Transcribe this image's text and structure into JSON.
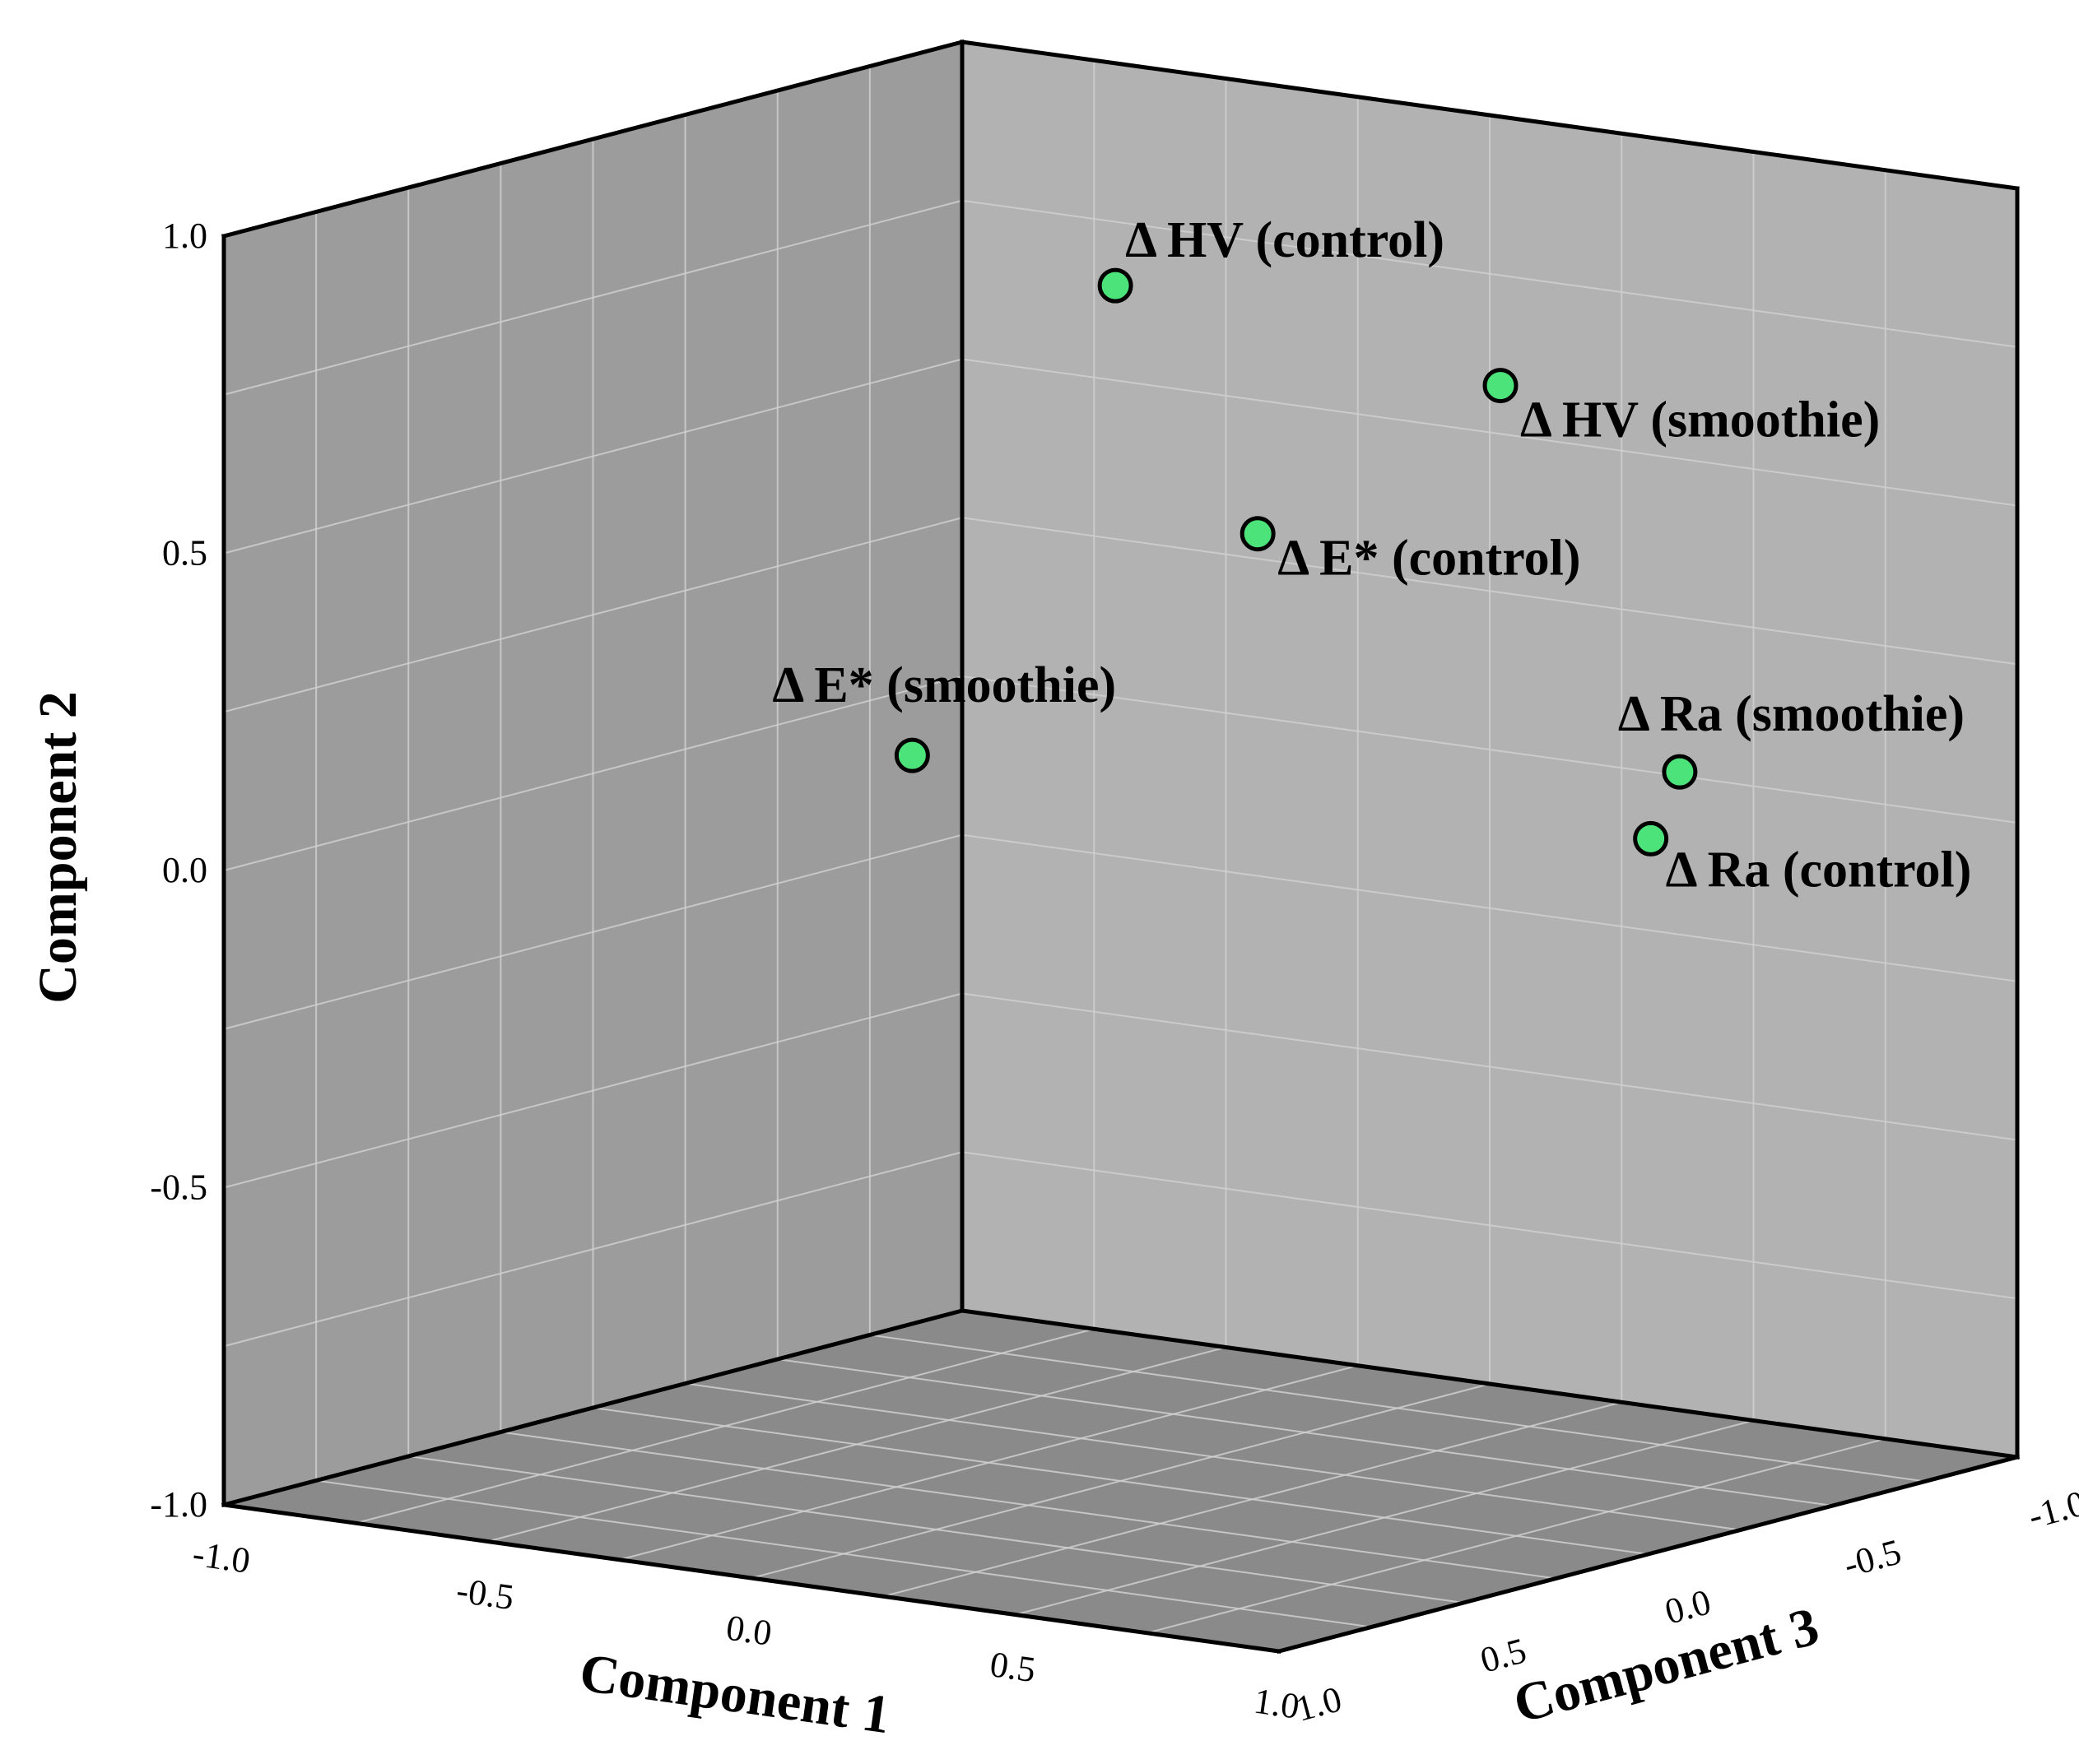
{
  "chart_data": {
    "type": "scatter",
    "subtype": "3d-scatter",
    "title": "",
    "axes": {
      "x": {
        "label": "Component 1",
        "range": [
          -1.0,
          1.0
        ],
        "ticks": [
          "-1.0",
          "-0.5",
          "0.0",
          "0.5",
          "1.0"
        ]
      },
      "y": {
        "label": "Component 2",
        "range": [
          -1.0,
          1.0
        ],
        "ticks": [
          "-1.0",
          "-0.5",
          "0.0",
          "0.5",
          "1.0"
        ]
      },
      "z": {
        "label": "Component 3",
        "range": [
          -1.0,
          1.0
        ],
        "ticks": [
          "1.0",
          "0.5",
          "0.0",
          "-0.5",
          "-1.0"
        ]
      }
    },
    "grid": true,
    "legend": "none",
    "colors": {
      "point_fill": "#4be37a",
      "point_stroke": "#000000",
      "back_wall": "#b2b2b2",
      "side_wall": "#9c9c9c",
      "floor": "#8a8a8a",
      "grid_line": "#cfcfcf",
      "frame": "#000000"
    },
    "points": [
      {
        "label": "Δ HV (control)",
        "x": 0.13,
        "y": 0.93,
        "z": 0.2
      },
      {
        "label": "Δ HV (smoothie)",
        "x": 0.72,
        "y": 0.81,
        "z": 0.0
      },
      {
        "label": "Δ E* (control)",
        "x": 0.4,
        "y": 0.57,
        "z": 0.2
      },
      {
        "label": "Δ E* (smoothie)",
        "x": -0.15,
        "y": 0.18,
        "z": 0.35
      },
      {
        "label": "Δ Ra (smoothie)",
        "x": 0.85,
        "y": 0.17,
        "z": -0.3
      },
      {
        "label": "Δ Ra (control)",
        "x": 0.83,
        "y": 0.07,
        "z": -0.25
      }
    ]
  }
}
